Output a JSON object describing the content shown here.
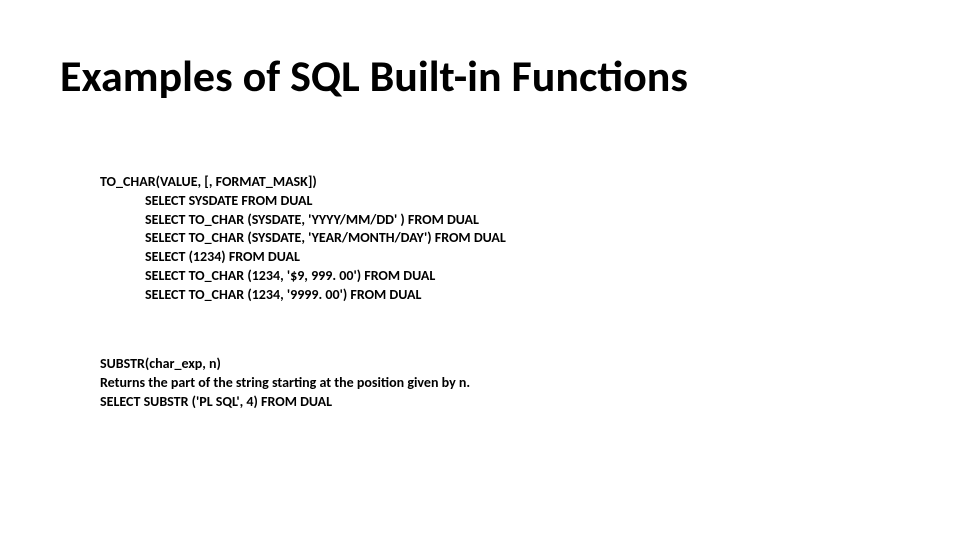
{
  "title": "Examples of SQL Built-in Functions",
  "tochar": {
    "heading": "TO_CHAR(VALUE, [, FORMAT_MASK])",
    "lines": [
      "SELECT SYSDATE FROM DUAL",
      "SELECT TO_CHAR (SYSDATE, 'YYYY/MM/DD' ) FROM DUAL",
      "SELECT TO_CHAR (SYSDATE, 'YEAR/MONTH/DAY') FROM DUAL",
      "SELECT (1234) FROM DUAL",
      " SELECT TO_CHAR (1234, '$9, 999. 00') FROM DUAL",
      "SELECT TO_CHAR (1234, '9999. 00') FROM DUAL"
    ]
  },
  "substr": {
    "heading": "SUBSTR(char_exp, n)",
    "desc": "Returns the part of the string starting at the position given by n.",
    "example": "SELECT SUBSTR ('PL SQL', 4) FROM DUAL"
  }
}
